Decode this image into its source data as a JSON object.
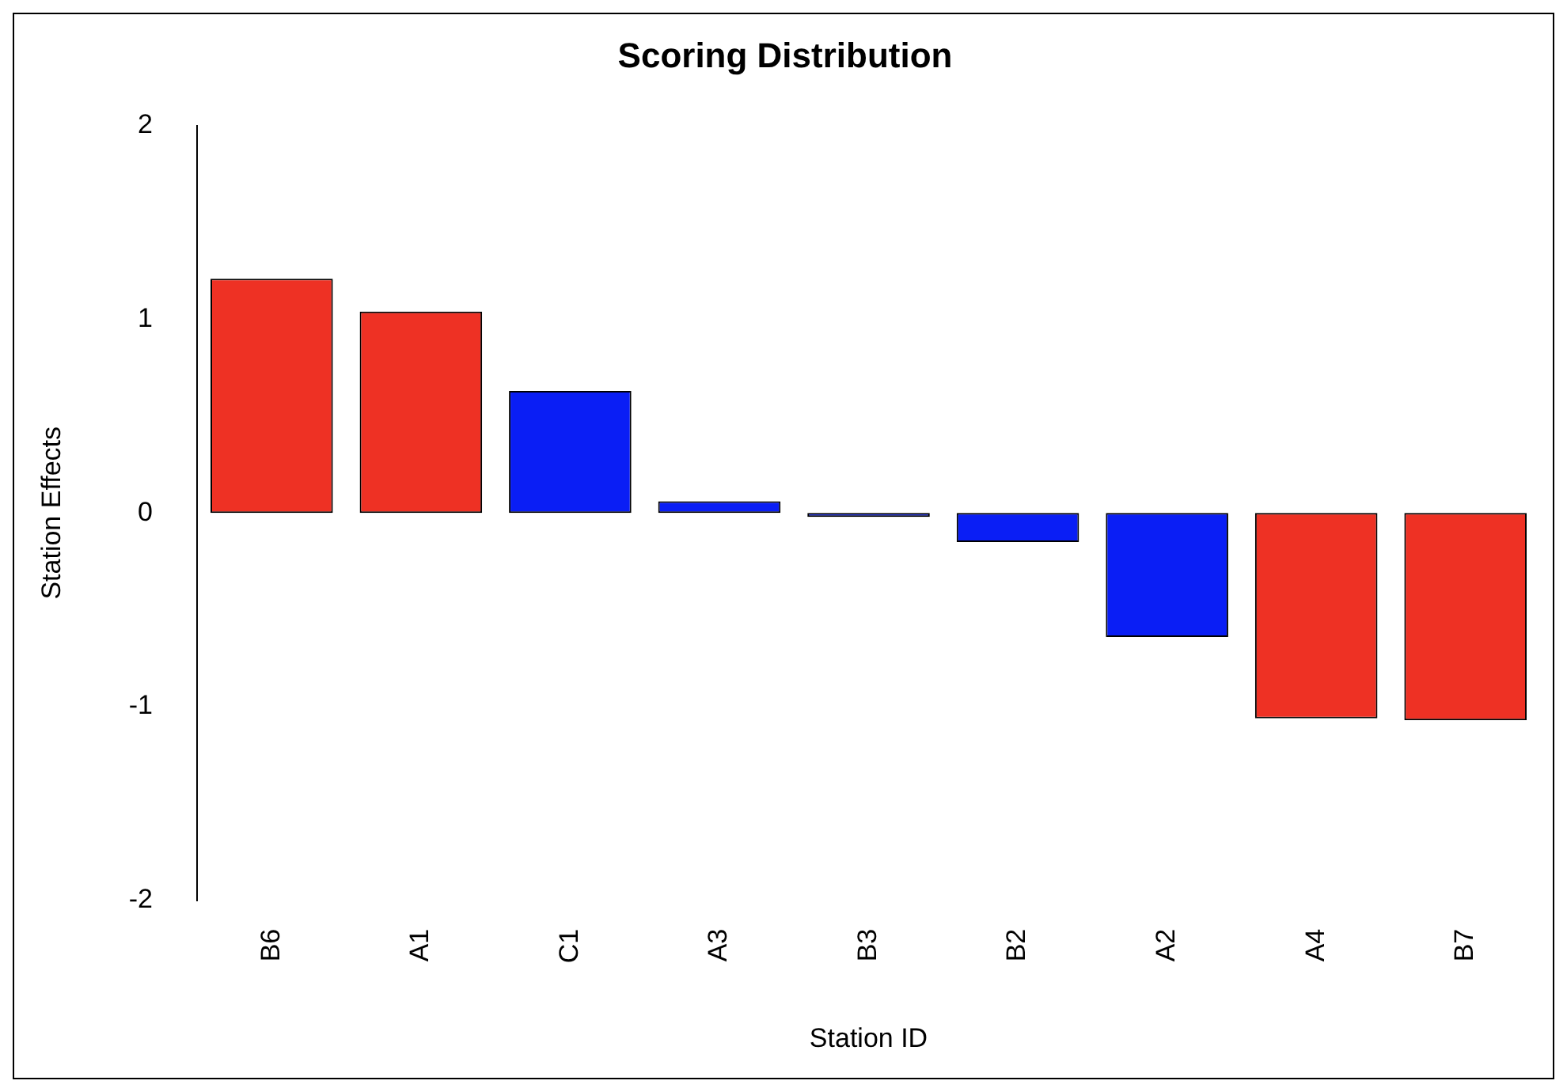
{
  "chart_data": {
    "type": "bar",
    "title": "Scoring Distribution",
    "xlabel": "Station ID",
    "ylabel": "Station Effects",
    "categories": [
      "B6",
      "A1",
      "C1",
      "A3",
      "B3",
      "B2",
      "A2",
      "A4",
      "B7"
    ],
    "values": [
      1.21,
      1.04,
      0.63,
      0.06,
      -0.02,
      -0.15,
      -0.64,
      -1.06,
      -1.07
    ],
    "colors": [
      "#ee3124",
      "#ee3124",
      "#0a1ef5",
      "#0a1ef5",
      "#0a1ef5",
      "#0a1ef5",
      "#0a1ef5",
      "#ee3124",
      "#ee3124"
    ],
    "ylim": [
      -2,
      2
    ],
    "yticks": [
      -2,
      -1,
      0,
      1,
      2
    ],
    "grid": false
  }
}
